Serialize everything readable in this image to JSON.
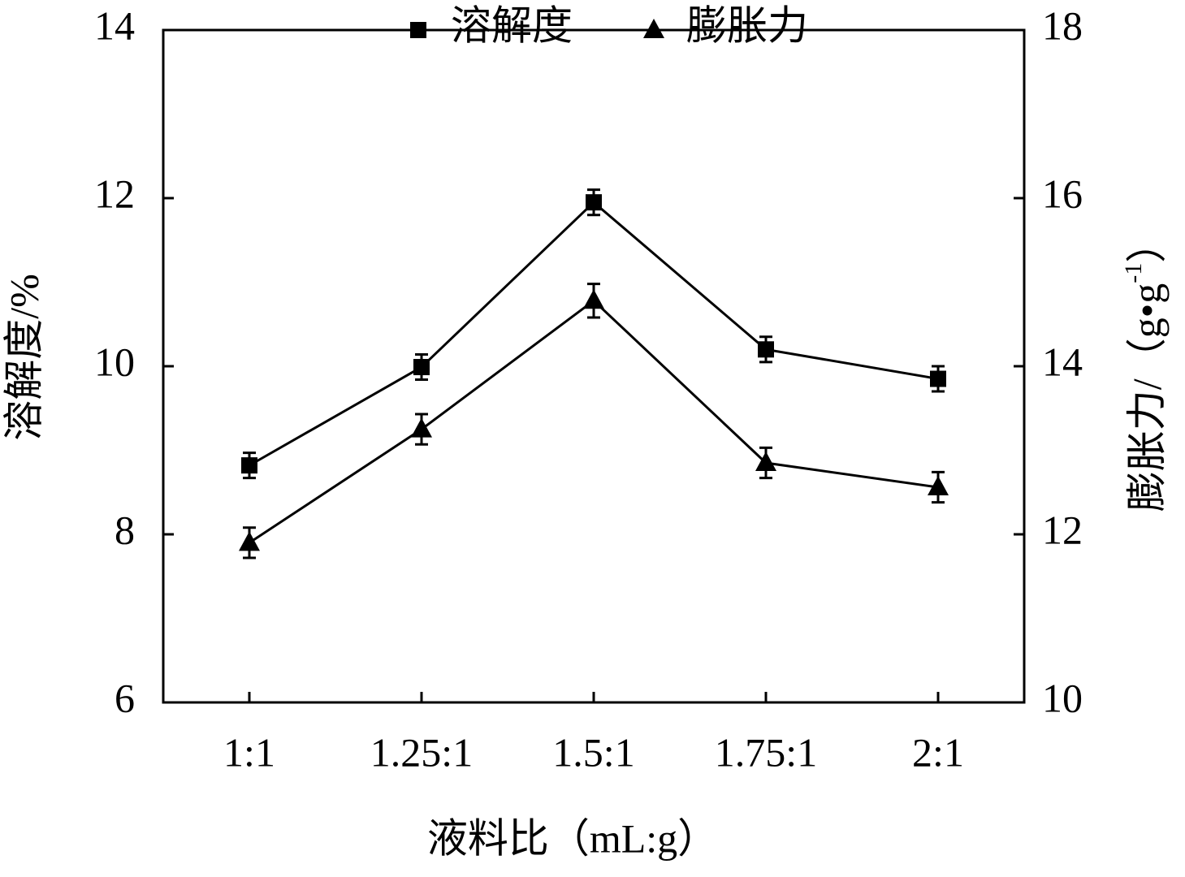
{
  "chart_data": {
    "type": "line",
    "categories": [
      "1:1",
      "1.25:1",
      "1.5:1",
      "1.75:1",
      "2:1"
    ],
    "xlabel": "液料比（mL:g）",
    "ylabel": "溶解度/%",
    "y2label": {
      "text": "膨胀力/（g•g",
      "sup": "-1",
      "end": "）"
    },
    "ylim": [
      6,
      14
    ],
    "yticks": [
      6,
      8,
      10,
      12,
      14
    ],
    "y2lim": [
      10,
      18
    ],
    "y2ticks": [
      10,
      12,
      14,
      16,
      18
    ],
    "series": [
      {
        "name": "溶解度",
        "color": "#000000",
        "marker": "square",
        "values": [
          8.82,
          9.99,
          11.95,
          10.2,
          9.85
        ],
        "errors": [
          0.15,
          0.15,
          0.15,
          0.15,
          0.15
        ]
      },
      {
        "name": "膨胀力",
        "color": "#000000",
        "marker": "triangle",
        "axis": "y2",
        "values": [
          11.9,
          13.25,
          14.78,
          12.85,
          12.56
        ],
        "errors": [
          0.18,
          0.18,
          0.2,
          0.18,
          0.18
        ]
      }
    ]
  }
}
